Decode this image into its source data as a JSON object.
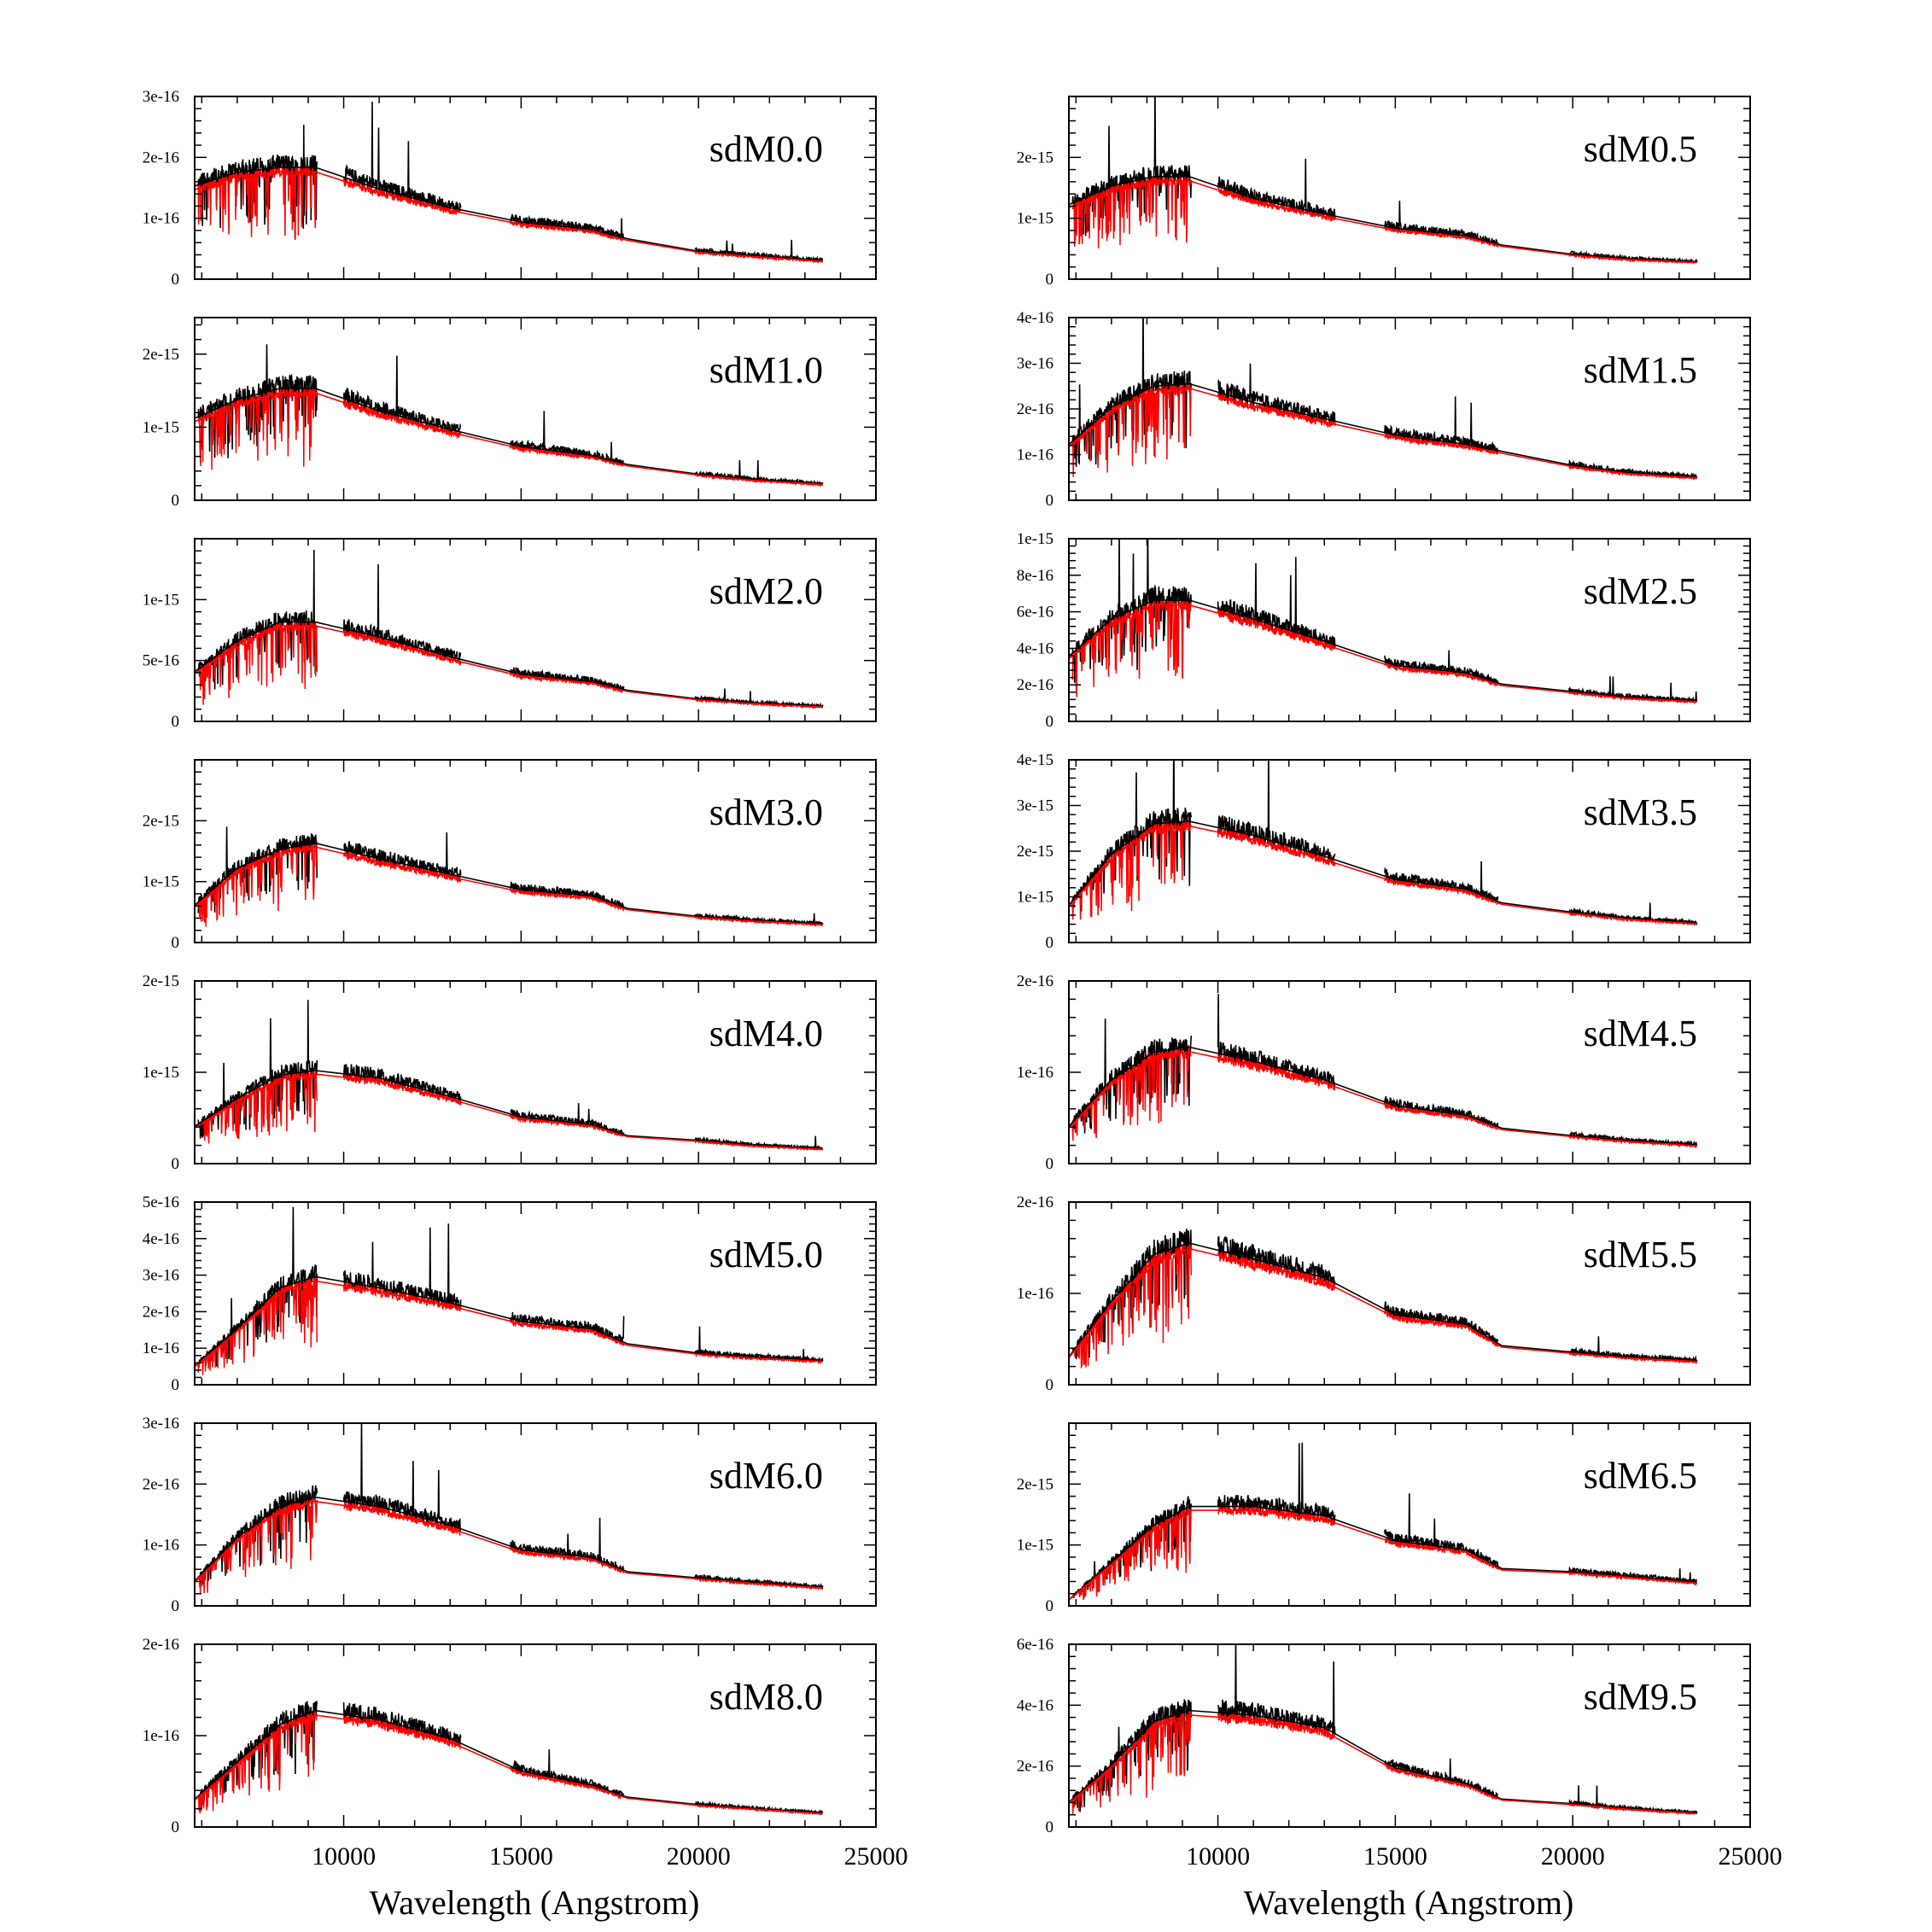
{
  "chart_data": {
    "type": "line",
    "grid": false,
    "xlabel": "Wavelength (Angstrom)",
    "xlim": [
      5800,
      25000
    ],
    "xticks": [
      10000,
      15000,
      20000,
      25000
    ],
    "series_colors": {
      "observed": "#000000",
      "model": "#ff0000"
    },
    "panels": [
      {
        "label": "sdM0.0",
        "ylim": [
          0,
          3e-16
        ],
        "yticks": [
          "0",
          "1e-16",
          "2e-16",
          "3e-16"
        ],
        "yvals": [
          0,
          1e-16,
          2e-16,
          3e-16
        ],
        "continuum": [
          [
            5800,
            1.5e-16
          ],
          [
            7000,
            1.72e-16
          ],
          [
            8200,
            1.8e-16
          ],
          [
            9200,
            1.8e-16
          ],
          [
            11000,
            1.45e-16
          ],
          [
            13000,
            1.15e-16
          ],
          [
            15000,
            9.2e-17
          ],
          [
            17000,
            8e-17
          ],
          [
            18000,
            6.5e-17
          ],
          [
            20000,
            4.5e-17
          ],
          [
            21500,
            3.8e-17
          ],
          [
            23500,
            3e-17
          ]
        ]
      },
      {
        "label": "sdM0.5",
        "ylim": [
          0,
          3e-15
        ],
        "yticks": [
          "0",
          "1e-15",
          "2e-15"
        ],
        "yvals": [
          0,
          1e-15,
          2e-15
        ],
        "continuum": [
          [
            5800,
            1.2e-15
          ],
          [
            7000,
            1.5e-15
          ],
          [
            8200,
            1.65e-15
          ],
          [
            9200,
            1.65e-15
          ],
          [
            11000,
            1.3e-15
          ],
          [
            13000,
            1.05e-15
          ],
          [
            15000,
            8.2e-16
          ],
          [
            17000,
            7e-16
          ],
          [
            18000,
            5.5e-16
          ],
          [
            20000,
            4e-16
          ],
          [
            21500,
            3.3e-16
          ],
          [
            23500,
            2.8e-16
          ]
        ]
      },
      {
        "label": "sdM1.0",
        "ylim": [
          0,
          2.5e-15
        ],
        "yticks": [
          "0",
          "1e-15",
          "2e-15"
        ],
        "yvals": [
          0,
          1e-15,
          2e-15
        ],
        "continuum": [
          [
            5800,
            1.1e-15
          ],
          [
            7000,
            1.35e-15
          ],
          [
            8200,
            1.5e-15
          ],
          [
            9200,
            1.5e-15
          ],
          [
            11000,
            1.2e-15
          ],
          [
            13000,
            9.5e-16
          ],
          [
            15000,
            7.2e-16
          ],
          [
            17000,
            6e-16
          ],
          [
            18000,
            4.8e-16
          ],
          [
            20000,
            3.5e-16
          ],
          [
            21500,
            2.8e-16
          ],
          [
            23500,
            2.2e-16
          ]
        ]
      },
      {
        "label": "sdM1.5",
        "ylim": [
          0,
          4e-16
        ],
        "yticks": [
          "0",
          "1e-16",
          "2e-16",
          "3e-16",
          "4e-16"
        ],
        "yvals": [
          0,
          1e-16,
          2e-16,
          3e-16,
          4e-16
        ],
        "continuum": [
          [
            5800,
            1.2e-16
          ],
          [
            7000,
            2e-16
          ],
          [
            8200,
            2.45e-16
          ],
          [
            9200,
            2.5e-16
          ],
          [
            11000,
            2.1e-16
          ],
          [
            13000,
            1.75e-16
          ],
          [
            15000,
            1.4e-16
          ],
          [
            17000,
            1.2e-16
          ],
          [
            18000,
            1.05e-16
          ],
          [
            20000,
            7.5e-17
          ],
          [
            21500,
            6e-17
          ],
          [
            23500,
            5e-17
          ]
        ]
      },
      {
        "label": "sdM2.0",
        "ylim": [
          0,
          1.5e-15
        ],
        "yticks": [
          "0",
          "5e-16",
          "1e-15"
        ],
        "yvals": [
          0,
          5e-16,
          1e-15
        ],
        "continuum": [
          [
            5800,
            4e-16
          ],
          [
            7000,
            6.5e-16
          ],
          [
            8200,
            8e-16
          ],
          [
            9200,
            8e-16
          ],
          [
            11000,
            6.8e-16
          ],
          [
            13000,
            5.2e-16
          ],
          [
            15000,
            3.8e-16
          ],
          [
            17000,
            3.2e-16
          ],
          [
            18000,
            2.5e-16
          ],
          [
            20000,
            1.8e-16
          ],
          [
            21500,
            1.5e-16
          ],
          [
            23500,
            1.2e-16
          ]
        ]
      },
      {
        "label": "sdM2.5",
        "ylim": [
          0,
          1e-15
        ],
        "yticks": [
          "0",
          "2e-16",
          "4e-16",
          "6e-16",
          "8e-16",
          "1e-15"
        ],
        "yvals": [
          0,
          2e-16,
          4e-16,
          6e-16,
          8e-16,
          1e-15
        ],
        "continuum": [
          [
            5800,
            3.5e-16
          ],
          [
            7000,
            5.5e-16
          ],
          [
            8200,
            6.5e-16
          ],
          [
            9200,
            6.5e-16
          ],
          [
            11000,
            5.5e-16
          ],
          [
            13000,
            4.3e-16
          ],
          [
            15000,
            3e-16
          ],
          [
            17000,
            2.6e-16
          ],
          [
            18000,
            2e-16
          ],
          [
            20000,
            1.6e-16
          ],
          [
            21500,
            1.3e-16
          ],
          [
            23500,
            1.1e-16
          ]
        ]
      },
      {
        "label": "sdM3.0",
        "ylim": [
          0,
          3e-15
        ],
        "yticks": [
          "0",
          "1e-15",
          "2e-15"
        ],
        "yvals": [
          0,
          1e-15,
          2e-15
        ],
        "continuum": [
          [
            5800,
            6e-16
          ],
          [
            7000,
            1.2e-15
          ],
          [
            8200,
            1.5e-15
          ],
          [
            9200,
            1.6e-15
          ],
          [
            11000,
            1.35e-15
          ],
          [
            13000,
            1.1e-15
          ],
          [
            15000,
            8.5e-16
          ],
          [
            17000,
            7.5e-16
          ],
          [
            18000,
            5.5e-16
          ],
          [
            20000,
            4.2e-16
          ],
          [
            21500,
            3.6e-16
          ],
          [
            23500,
            3e-16
          ]
        ]
      },
      {
        "label": "sdM3.5",
        "ylim": [
          0,
          4e-15
        ],
        "yticks": [
          "0",
          "1e-15",
          "2e-15",
          "3e-15",
          "4e-15"
        ],
        "yvals": [
          0,
          1e-15,
          2e-15,
          3e-15,
          4e-15
        ],
        "continuum": [
          [
            5800,
            8e-16
          ],
          [
            7000,
            1.9e-15
          ],
          [
            8200,
            2.55e-15
          ],
          [
            9200,
            2.6e-15
          ],
          [
            11000,
            2.3e-15
          ],
          [
            13000,
            1.85e-15
          ],
          [
            15000,
            1.35e-15
          ],
          [
            17000,
            1.15e-15
          ],
          [
            18000,
            8.5e-16
          ],
          [
            20000,
            6.5e-16
          ],
          [
            21500,
            5.2e-16
          ],
          [
            23500,
            4.2e-16
          ]
        ]
      },
      {
        "label": "sdM4.0",
        "ylim": [
          0,
          2e-15
        ],
        "yticks": [
          "0",
          "1e-15",
          "2e-15"
        ],
        "yvals": [
          0,
          1e-15,
          2e-15
        ],
        "continuum": [
          [
            5800,
            4e-16
          ],
          [
            7000,
            7e-16
          ],
          [
            8200,
            9.5e-16
          ],
          [
            9200,
            1e-15
          ],
          [
            11000,
            9.2e-16
          ],
          [
            13000,
            7.2e-16
          ],
          [
            15000,
            5e-16
          ],
          [
            17000,
            4.2e-16
          ],
          [
            18000,
            3e-16
          ],
          [
            20000,
            2.5e-16
          ],
          [
            21500,
            2e-16
          ],
          [
            23500,
            1.6e-16
          ]
        ]
      },
      {
        "label": "sdM4.5",
        "ylim": [
          0,
          2e-16
        ],
        "yticks": [
          "0",
          "1e-16",
          "2e-16"
        ],
        "yvals": [
          0,
          1e-16,
          2e-16
        ],
        "continuum": [
          [
            5800,
            4e-17
          ],
          [
            7000,
            9e-17
          ],
          [
            8200,
            1.2e-16
          ],
          [
            9200,
            1.25e-16
          ],
          [
            11000,
            1.1e-16
          ],
          [
            13000,
            9e-17
          ],
          [
            15000,
            6.2e-17
          ],
          [
            17000,
            5.2e-17
          ],
          [
            18000,
            3.8e-17
          ],
          [
            20000,
            3e-17
          ],
          [
            21500,
            2.5e-17
          ],
          [
            23500,
            2e-17
          ]
        ]
      },
      {
        "label": "sdM5.0",
        "ylim": [
          0,
          5e-16
        ],
        "yticks": [
          "0",
          "1e-16",
          "2e-16",
          "3e-16",
          "4e-16",
          "5e-16"
        ],
        "yvals": [
          0,
          1e-16,
          2e-16,
          3e-16,
          4e-16,
          5e-16
        ],
        "continuum": [
          [
            5800,
            5e-17
          ],
          [
            7000,
            1.5e-16
          ],
          [
            8200,
            2.6e-16
          ],
          [
            9200,
            2.9e-16
          ],
          [
            11000,
            2.6e-16
          ],
          [
            13000,
            2.2e-16
          ],
          [
            15000,
            1.7e-16
          ],
          [
            17000,
            1.5e-16
          ],
          [
            18000,
            1.1e-16
          ],
          [
            20000,
            8.5e-17
          ],
          [
            21500,
            7.5e-17
          ],
          [
            23500,
            6.5e-17
          ]
        ]
      },
      {
        "label": "sdM5.5",
        "ylim": [
          0,
          2e-16
        ],
        "yticks": [
          "0",
          "1e-16",
          "2e-16"
        ],
        "yvals": [
          0,
          1e-16,
          2e-16
        ],
        "continuum": [
          [
            5800,
            3e-17
          ],
          [
            7000,
            9e-17
          ],
          [
            8200,
            1.4e-16
          ],
          [
            9200,
            1.52e-16
          ],
          [
            11000,
            1.35e-16
          ],
          [
            13000,
            1.15e-16
          ],
          [
            15000,
            7.5e-17
          ],
          [
            17000,
            6.5e-17
          ],
          [
            18000,
            4.2e-17
          ],
          [
            20000,
            3.5e-17
          ],
          [
            21500,
            3e-17
          ],
          [
            23500,
            2.6e-17
          ]
        ]
      },
      {
        "label": "sdM6.0",
        "ylim": [
          0,
          3e-16
        ],
        "yticks": [
          "0",
          "1e-16",
          "2e-16",
          "3e-16"
        ],
        "yvals": [
          0,
          1e-16,
          2e-16,
          3e-16
        ],
        "continuum": [
          [
            5800,
            4e-17
          ],
          [
            7000,
            1.1e-16
          ],
          [
            8200,
            1.6e-16
          ],
          [
            9200,
            1.75e-16
          ],
          [
            11000,
            1.6e-16
          ],
          [
            13000,
            1.3e-16
          ],
          [
            15000,
            9e-17
          ],
          [
            17000,
            7.8e-17
          ],
          [
            18000,
            5.5e-17
          ],
          [
            20000,
            4.5e-17
          ],
          [
            21500,
            3.8e-17
          ],
          [
            23500,
            3e-17
          ]
        ]
      },
      {
        "label": "sdM6.5",
        "ylim": [
          0,
          3e-15
        ],
        "yticks": [
          "0",
          "1e-15",
          "2e-15"
        ],
        "yvals": [
          0,
          1e-15,
          2e-15
        ],
        "continuum": [
          [
            5800,
            1e-16
          ],
          [
            7000,
            7e-16
          ],
          [
            8200,
            1.3e-15
          ],
          [
            9200,
            1.6e-15
          ],
          [
            11000,
            1.6e-15
          ],
          [
            13000,
            1.45e-15
          ],
          [
            15000,
            1.05e-15
          ],
          [
            17000,
            9e-16
          ],
          [
            18000,
            6e-16
          ],
          [
            20000,
            5.5e-16
          ],
          [
            21500,
            4.8e-16
          ],
          [
            23500,
            3.8e-16
          ]
        ]
      },
      {
        "label": "sdM8.0",
        "ylim": [
          0,
          2e-16
        ],
        "yticks": [
          "0",
          "1e-16",
          "2e-16"
        ],
        "yvals": [
          0,
          1e-16,
          2e-16
        ],
        "continuum": [
          [
            5800,
            3e-17
          ],
          [
            7000,
            7e-17
          ],
          [
            8200,
            1.1e-16
          ],
          [
            9200,
            1.25e-16
          ],
          [
            11000,
            1.15e-16
          ],
          [
            13000,
            9.5e-17
          ],
          [
            15000,
            6e-17
          ],
          [
            17000,
            4.5e-17
          ],
          [
            18000,
            3.2e-17
          ],
          [
            20000,
            2.4e-17
          ],
          [
            21500,
            2e-17
          ],
          [
            23500,
            1.5e-17
          ]
        ]
      },
      {
        "label": "sdM9.5",
        "ylim": [
          0,
          6e-16
        ],
        "yticks": [
          "0",
          "2e-16",
          "4e-16",
          "6e-16"
        ],
        "yvals": [
          0,
          2e-16,
          4e-16,
          6e-16
        ],
        "continuum": [
          [
            5800,
            8e-17
          ],
          [
            7000,
            2e-16
          ],
          [
            8200,
            3.4e-16
          ],
          [
            9200,
            3.75e-16
          ],
          [
            11000,
            3.6e-16
          ],
          [
            13000,
            3.2e-16
          ],
          [
            15000,
            1.9e-16
          ],
          [
            17000,
            1.4e-16
          ],
          [
            18000,
            9e-17
          ],
          [
            20000,
            7.5e-17
          ],
          [
            21500,
            6e-17
          ],
          [
            23500,
            4.5e-17
          ]
        ]
      }
    ]
  }
}
